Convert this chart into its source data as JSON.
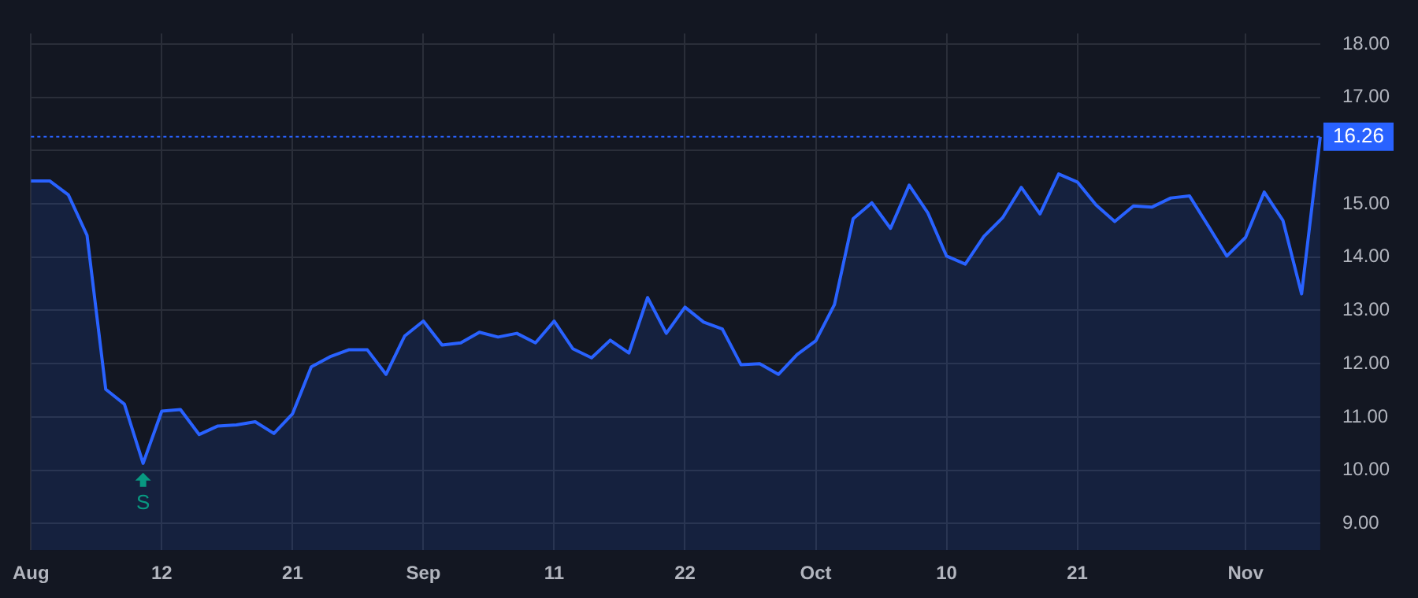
{
  "chart_data": {
    "type": "area",
    "categories": [
      "Aug",
      null,
      null,
      null,
      null,
      null,
      null,
      "12",
      null,
      null,
      null,
      null,
      null,
      null,
      "21",
      null,
      null,
      null,
      null,
      null,
      null,
      "Sep",
      null,
      null,
      null,
      null,
      null,
      null,
      "11",
      null,
      null,
      null,
      null,
      null,
      null,
      "22",
      null,
      null,
      null,
      null,
      null,
      null,
      "Oct",
      null,
      null,
      null,
      null,
      null,
      null,
      "10",
      null,
      null,
      null,
      null,
      null,
      null,
      "21",
      null,
      null,
      null,
      null,
      null,
      null,
      null,
      null,
      "Nov",
      null,
      null,
      null,
      null
    ],
    "series": [
      {
        "color": "#2962ff",
        "values": [
          15.43,
          15.43,
          15.17,
          14.41,
          11.52,
          11.24,
          10.13,
          11.11,
          11.14,
          10.67,
          10.83,
          10.85,
          10.91,
          10.69,
          11.06,
          11.94,
          12.13,
          12.26,
          12.26,
          11.8,
          12.52,
          12.8,
          12.35,
          12.39,
          12.59,
          12.5,
          12.57,
          12.39,
          12.8,
          12.28,
          12.11,
          12.44,
          12.2,
          13.24,
          12.57,
          13.06,
          12.78,
          12.65,
          11.98,
          12.0,
          11.8,
          12.17,
          12.43,
          13.11,
          14.72,
          15.02,
          14.54,
          15.35,
          14.83,
          14.02,
          13.87,
          14.39,
          14.74,
          15.31,
          14.81,
          15.56,
          15.41,
          14.98,
          14.67,
          14.96,
          14.94,
          15.11,
          15.15,
          14.59,
          14.02,
          14.37,
          15.22,
          14.69,
          13.31,
          16.26
        ]
      }
    ],
    "ylim": [
      8.5,
      18.2
    ],
    "yticks": [
      {
        "value": 9,
        "label": "9.00"
      },
      {
        "value": 10,
        "label": "10.00"
      },
      {
        "value": 11,
        "label": "11.00"
      },
      {
        "value": 12,
        "label": "12.00"
      },
      {
        "value": 13,
        "label": "13.00"
      },
      {
        "value": 14,
        "label": "14.00"
      },
      {
        "value": 15,
        "label": "15.00"
      },
      {
        "value": 16,
        "label": null
      },
      {
        "value": 17,
        "label": "17.00"
      },
      {
        "value": 18,
        "label": "18.00"
      }
    ],
    "ref_lines": [
      {
        "axis": "y",
        "value": 16.26,
        "label": "16.26",
        "color": "#2962ff",
        "line_style": "dotted"
      }
    ],
    "annotations": [
      {
        "text": "S",
        "y": 10.13
      }
    ],
    "grid": true,
    "legend": false,
    "marker": "none",
    "line_style": "solid"
  }
}
